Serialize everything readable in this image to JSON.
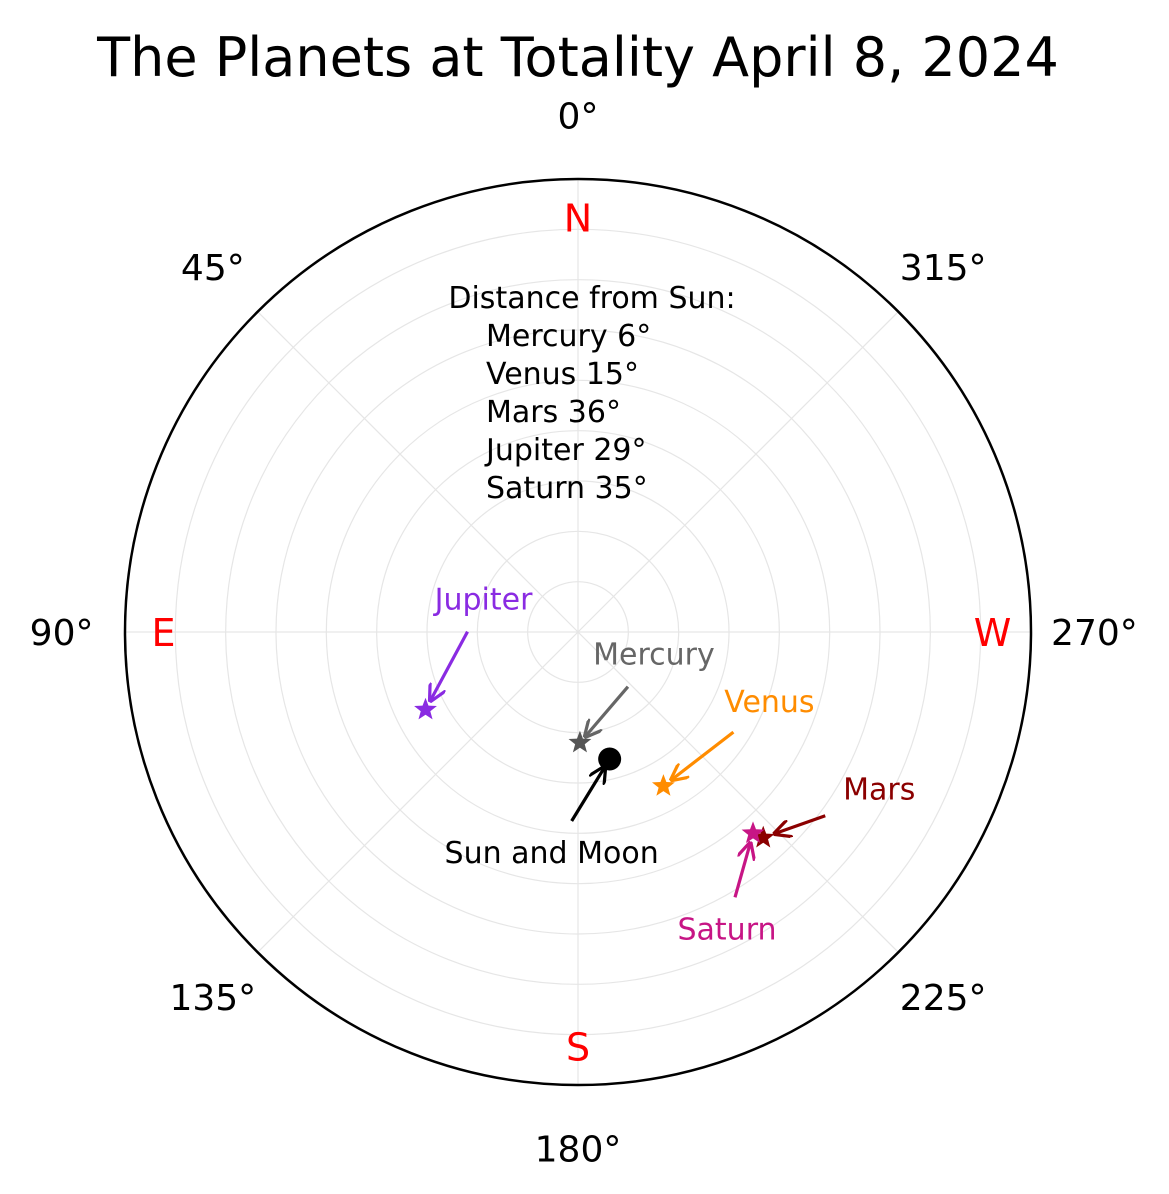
{
  "chart_data": {
    "type": "scatter",
    "projection": "polar",
    "title": "The Planets at Totality April 8, 2024",
    "theta_direction": "counterclockwise",
    "theta_zero": "top",
    "angle_ticks": [
      {
        "deg": 0,
        "label": "0°"
      },
      {
        "deg": 45,
        "label": "45°"
      },
      {
        "deg": 90,
        "label": "90°"
      },
      {
        "deg": 135,
        "label": "135°"
      },
      {
        "deg": 180,
        "label": "180°"
      },
      {
        "deg": 225,
        "label": "225°"
      },
      {
        "deg": 270,
        "label": "270°"
      },
      {
        "deg": 315,
        "label": "315°"
      }
    ],
    "cardinals": [
      {
        "deg": 0,
        "label": "N"
      },
      {
        "deg": 90,
        "label": "E"
      },
      {
        "deg": 180,
        "label": "S"
      },
      {
        "deg": 270,
        "label": "W"
      }
    ],
    "radial_gridlines": 9,
    "grid": true,
    "points": [
      {
        "name": "Sun and Moon",
        "azimuth": 194,
        "zenith_distance": 26,
        "marker": "circle",
        "color": "#000000",
        "label_color": "#000000"
      },
      {
        "name": "Mercury",
        "azimuth": 181,
        "zenith_distance": 22,
        "marker": "star",
        "color": "#555555",
        "label_color": "#666666"
      },
      {
        "name": "Venus",
        "azimuth": 209,
        "zenith_distance": 35,
        "marker": "star",
        "color": "#ff8c00",
        "label_color": "#ff8c00"
      },
      {
        "name": "Mars",
        "azimuth": 222,
        "zenith_distance": 55,
        "marker": "star",
        "color": "#8b0000",
        "label_color": "#8b0000"
      },
      {
        "name": "Saturn",
        "azimuth": 221,
        "zenith_distance": 53,
        "marker": "star",
        "color": "#c71585",
        "label_color": "#c71585"
      },
      {
        "name": "Jupiter",
        "azimuth": 117,
        "zenith_distance": 34,
        "marker": "star",
        "color": "#8a2be2",
        "label_color": "#8a2be2"
      }
    ],
    "annotation": {
      "heading": "Distance from Sun:",
      "lines": [
        "Mercury 6°",
        "Venus 15°",
        "Mars 36°",
        "Jupiter 29°",
        "Saturn 35°"
      ]
    }
  }
}
